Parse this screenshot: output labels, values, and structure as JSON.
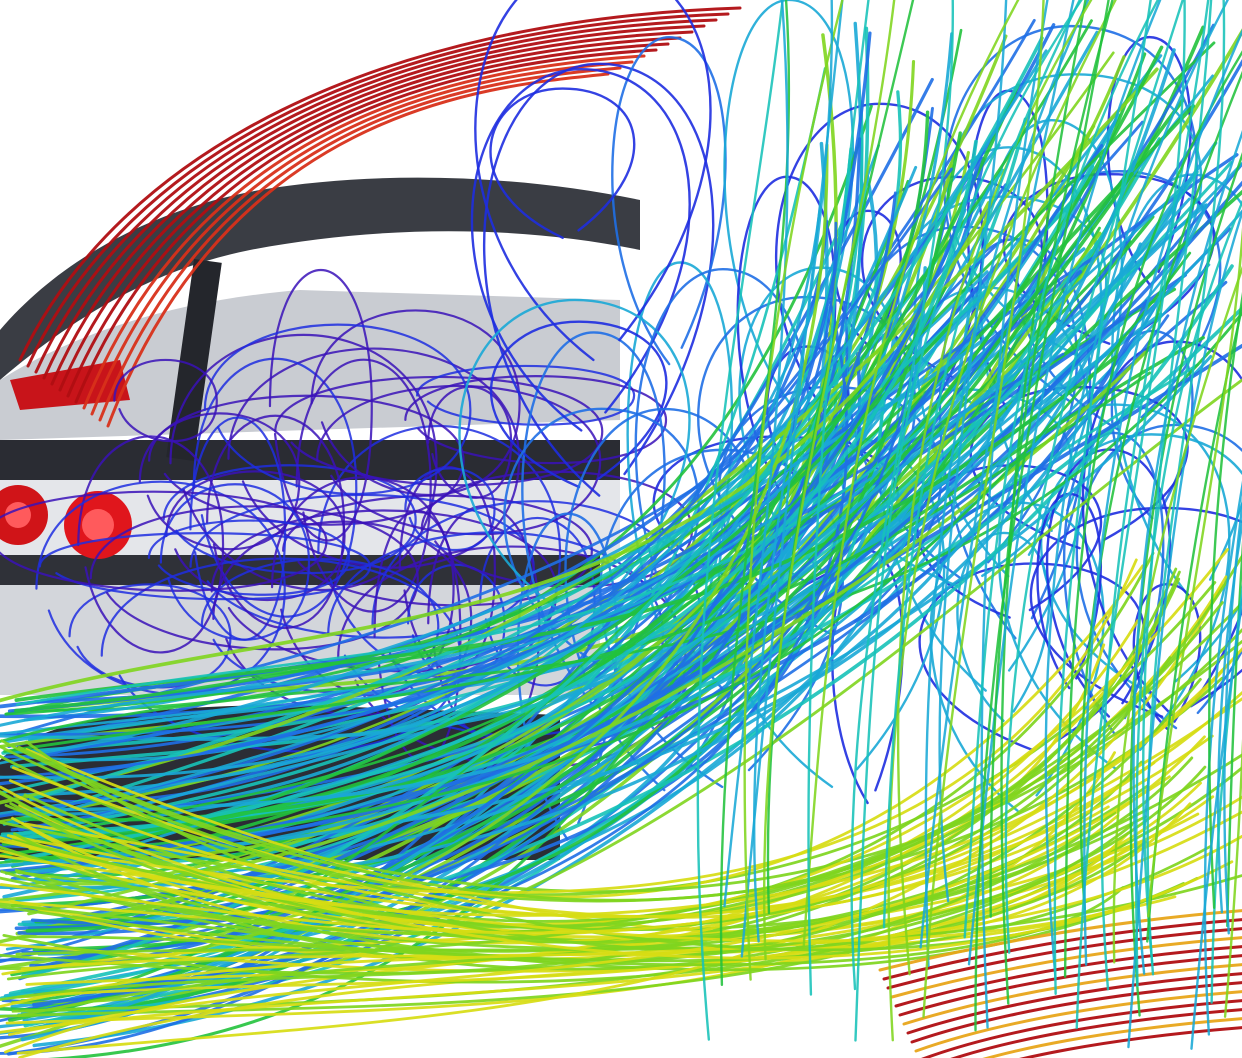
{
  "scene": {
    "subject": "cfd-streamline-visualization",
    "background_color": "#ffffff",
    "geometry_colors": {
      "dark": "#2a2c33",
      "mid": "#5d6168",
      "light": "#c9ccd2"
    },
    "streamline_palette": [
      "#3a12b8",
      "#1e2ee0",
      "#1f6fe6",
      "#19a8d6",
      "#17c2b8",
      "#22c23c",
      "#7fd51e",
      "#d7dc14",
      "#e8a51a",
      "#d8301a",
      "#b00e12"
    ]
  }
}
